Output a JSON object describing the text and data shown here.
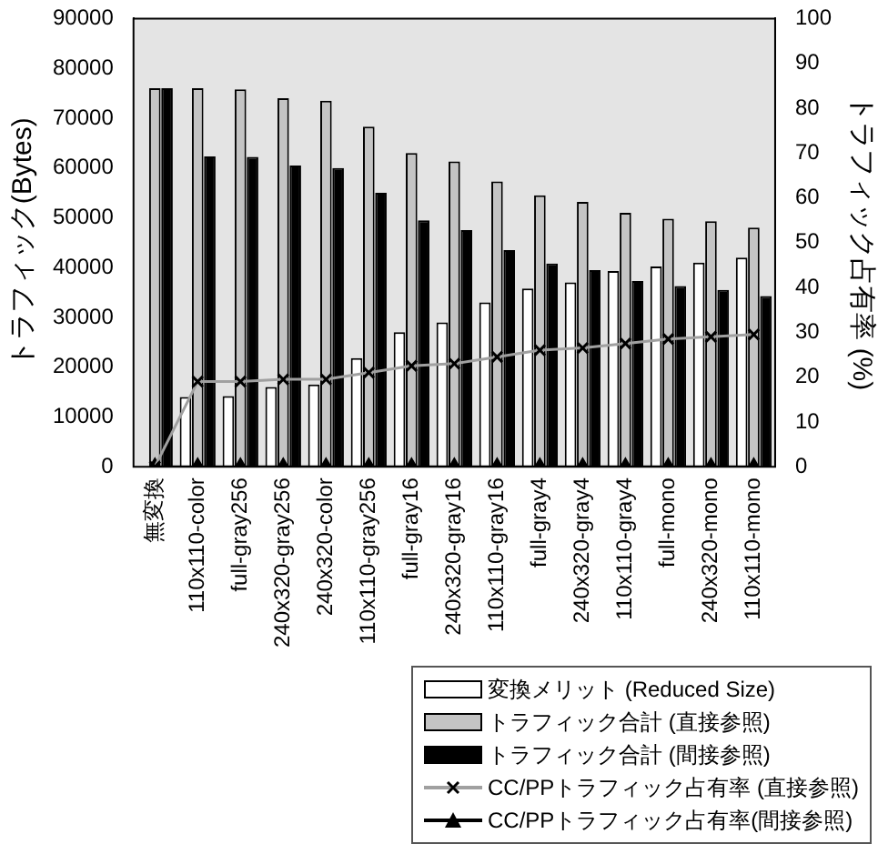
{
  "chart_data": {
    "type": "bar",
    "categories": [
      "無変換",
      "110x110-color",
      "full-gray256",
      "240x320-gray256",
      "240x320-color",
      "110x110-gray256",
      "full-gray16",
      "240x320-gray16",
      "110x110-gray16",
      "full-gray4",
      "240x320-gray4",
      "110x110-gray4",
      "full-mono",
      "240x320-mono",
      "110x110-mono"
    ],
    "ylabel": "トラフィック(Bytes)",
    "y2label": "トラフィック占有率 (%)",
    "ylim": [
      0,
      90000
    ],
    "yticks": [
      0,
      10000,
      20000,
      30000,
      40000,
      50000,
      60000,
      70000,
      80000,
      90000
    ],
    "y2lim": [
      0,
      100
    ],
    "y2ticks": [
      0,
      10,
      20,
      30,
      40,
      50,
      60,
      70,
      80,
      90,
      100
    ],
    "legend": "bottom",
    "grid": false,
    "series": [
      {
        "name": "変換メリット (Reduced Size)",
        "color": "#ffffff",
        "values": [
          0,
          14000,
          14200,
          16000,
          16500,
          21800,
          27000,
          29000,
          33000,
          35800,
          37000,
          39300,
          40200,
          41000,
          42000
        ]
      },
      {
        "name": "トラフィック合計 (直接参照)",
        "color": "#c4c4c4",
        "values": [
          76000,
          76000,
          75800,
          74000,
          73500,
          68300,
          63000,
          61300,
          57300,
          54500,
          53200,
          51000,
          49800,
          49300,
          48000
        ]
      },
      {
        "name": "トラフィック合計 (間接参照)",
        "color": "#000000",
        "values": [
          76000,
          62300,
          62200,
          60500,
          60000,
          55000,
          49500,
          47500,
          43500,
          40800,
          39500,
          37300,
          36300,
          35500,
          34300
        ]
      },
      {
        "name": "CC/PPトラフィック占有率 (直接参照)",
        "type": "line",
        "axis": "y2",
        "marker": "cross",
        "color": "#a0a0a0",
        "values": [
          0,
          19,
          19,
          19.5,
          19.5,
          21,
          22.5,
          23,
          24.5,
          26,
          26.5,
          27.5,
          28.5,
          29,
          29.5
        ]
      },
      {
        "name": "CC/PPトラフィック占有率(間接参照)",
        "type": "line",
        "axis": "y2",
        "marker": "triangle",
        "color": "#000000",
        "values": [
          0,
          0,
          0,
          0,
          0,
          0,
          0,
          0,
          0,
          0,
          0,
          0,
          0,
          0,
          0
        ]
      }
    ]
  }
}
